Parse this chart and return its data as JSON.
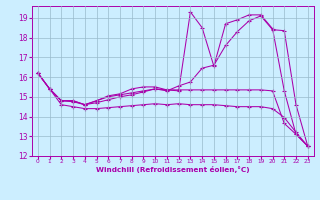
{
  "xlabel": "Windchill (Refroidissement éolien,°C)",
  "bg_color": "#cceeff",
  "line_color": "#aa00aa",
  "grid_color": "#99bbcc",
  "xlim": [
    -0.5,
    23.5
  ],
  "ylim": [
    12,
    19.6
  ],
  "yticks": [
    12,
    13,
    14,
    15,
    16,
    17,
    18,
    19
  ],
  "xticks": [
    0,
    1,
    2,
    3,
    4,
    5,
    6,
    7,
    8,
    9,
    10,
    11,
    12,
    13,
    14,
    15,
    16,
    17,
    18,
    19,
    20,
    21,
    22,
    23
  ],
  "lines": [
    {
      "x": [
        0,
        1,
        2,
        3,
        4,
        5,
        6,
        7,
        8,
        9,
        10,
        11,
        12,
        13,
        14,
        15,
        16,
        17,
        18,
        19,
        20,
        21,
        22,
        23
      ],
      "y": [
        16.2,
        15.4,
        14.8,
        14.8,
        14.6,
        14.8,
        15.05,
        15.15,
        15.4,
        15.5,
        15.5,
        15.35,
        15.3,
        19.3,
        18.5,
        16.55,
        18.7,
        18.9,
        19.15,
        19.15,
        18.45,
        15.3,
        13.1,
        12.5
      ]
    },
    {
      "x": [
        0,
        1,
        2,
        3,
        4,
        5,
        6,
        7,
        8,
        9,
        10,
        11,
        12,
        13,
        14,
        15,
        16,
        17,
        18,
        19,
        20,
        21,
        22,
        23
      ],
      "y": [
        16.2,
        15.4,
        14.8,
        14.75,
        14.6,
        14.7,
        14.85,
        15.0,
        15.1,
        15.25,
        15.4,
        15.3,
        15.55,
        15.75,
        16.45,
        16.6,
        17.6,
        18.3,
        18.85,
        19.1,
        18.4,
        18.35,
        14.6,
        12.5
      ]
    },
    {
      "x": [
        0,
        1,
        2,
        3,
        4,
        5,
        6,
        7,
        8,
        9,
        10,
        11,
        12,
        13,
        14,
        15,
        16,
        17,
        18,
        19,
        20,
        21,
        22,
        23
      ],
      "y": [
        16.2,
        15.4,
        14.8,
        14.8,
        14.6,
        14.8,
        15.0,
        15.1,
        15.2,
        15.3,
        15.4,
        15.35,
        15.35,
        15.35,
        15.35,
        15.35,
        15.35,
        15.35,
        15.35,
        15.35,
        15.3,
        13.65,
        13.1,
        12.5
      ]
    },
    {
      "x": [
        0,
        1,
        2,
        3,
        4,
        5,
        6,
        7,
        8,
        9,
        10,
        11,
        12,
        13,
        14,
        15,
        16,
        17,
        18,
        19,
        20,
        21,
        22,
        23
      ],
      "y": [
        16.2,
        15.4,
        14.6,
        14.5,
        14.4,
        14.4,
        14.45,
        14.5,
        14.55,
        14.6,
        14.65,
        14.6,
        14.65,
        14.6,
        14.6,
        14.6,
        14.55,
        14.5,
        14.5,
        14.5,
        14.4,
        13.95,
        13.2,
        12.5
      ]
    }
  ]
}
